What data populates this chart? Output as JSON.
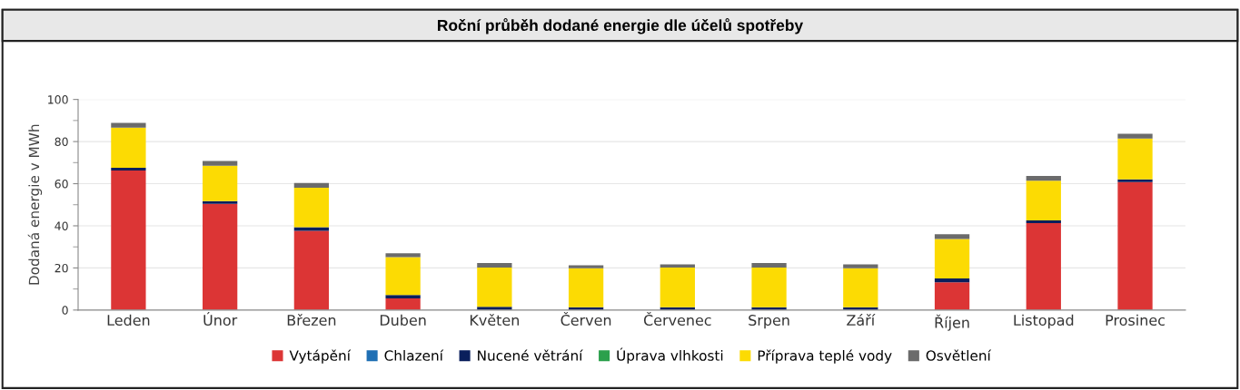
{
  "chart_data": {
    "type": "bar",
    "title": "Roční průběh dodané energie dle účelů spotřeby",
    "ylabel": "Dodaná energie v MWh",
    "categories": [
      "Leden",
      "Únor",
      "Březen",
      "Duben",
      "Květen",
      "Červen",
      "Červenec",
      "Srpen",
      "Září",
      "Říjen",
      "Listopad",
      "Prosinec"
    ],
    "stacked": true,
    "ylim": [
      0,
      100
    ],
    "yticks": [
      0,
      20,
      40,
      60,
      80,
      100
    ],
    "grid": "y",
    "legend": "bottom",
    "series": [
      {
        "name": "Vytápění",
        "color": "#dc3535",
        "values": [
          66.3,
          50.4,
          37.6,
          5.5,
          0,
          0,
          0,
          0,
          0,
          13.2,
          41.3,
          60.8
        ]
      },
      {
        "name": "Chlazení",
        "color": "#1f6fb4",
        "values": [
          0,
          0,
          0,
          0,
          0,
          0,
          0,
          0,
          0,
          0,
          0,
          0
        ]
      },
      {
        "name": "Nucené větrání",
        "color": "#0a1f5c",
        "values": [
          1.2,
          1.3,
          1.7,
          1.6,
          1.6,
          1.3,
          1.3,
          1.3,
          1.3,
          1.8,
          1.3,
          1.3
        ]
      },
      {
        "name": "Úprava vlhkosti",
        "color": "#2ca04c",
        "values": [
          0,
          0,
          0,
          0,
          0,
          0,
          0,
          0,
          0,
          0,
          0,
          0
        ]
      },
      {
        "name": "Příprava teplé vody",
        "color": "#fcdb03",
        "values": [
          19.1,
          16.8,
          18.8,
          18.0,
          18.6,
          18.5,
          18.9,
          18.9,
          18.5,
          18.7,
          18.8,
          19.3
        ]
      },
      {
        "name": "Osvětlení",
        "color": "#6b6b6b",
        "values": [
          2.3,
          2.3,
          2.2,
          1.9,
          2.1,
          1.4,
          1.5,
          2.1,
          1.9,
          2.3,
          2.3,
          2.3
        ]
      }
    ]
  }
}
